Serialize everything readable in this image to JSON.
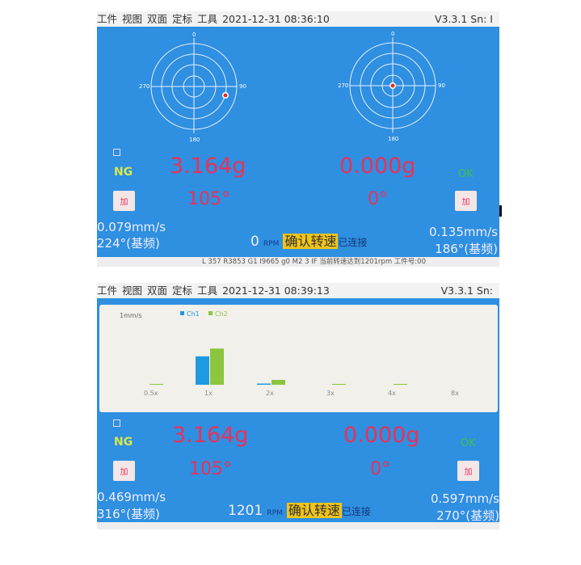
{
  "screens": [
    {
      "menu": [
        "工件",
        "视图",
        "双面",
        "定标",
        "工具"
      ],
      "datetime": "2021-12-31 08:36:10",
      "version": "V3.3.1 Sn: I",
      "left": {
        "status": "NG",
        "weight": "3.164g",
        "angle": "105°",
        "vibration": "0.079mm/s",
        "phase": "224°(基频)"
      },
      "right": {
        "status": "OK",
        "weight": "0.000g",
        "angle": "0°",
        "vibration": "0.135mm/s",
        "phase": "186°(基频)"
      },
      "rpm_value": "0",
      "rpm_unit": "RPM",
      "confirm_label": "确认转速",
      "connection": "已连接",
      "icon_label": "加",
      "polar_labels": [
        "0",
        "90",
        "180",
        "270"
      ],
      "statusbar": "L 357  R3853  G1 I9665 g0 M2 3 IF  当前转速达到1201rpm    工件号:00"
    },
    {
      "menu": [
        "工件",
        "视图",
        "双面",
        "定标",
        "工具"
      ],
      "datetime": "2021-12-31 08:39:13",
      "version": "V3.3.1 Sn:",
      "left": {
        "status": "NG",
        "weight": "3.164g",
        "angle": "105°",
        "vibration": "0.469mm/s",
        "phase": "316°(基频)"
      },
      "right": {
        "status": "OK",
        "weight": "0.000g",
        "angle": "0°",
        "vibration": "0.597mm/s",
        "phase": "270°(基频)"
      },
      "rpm_value": "1201",
      "rpm_unit": "RPM",
      "confirm_label": "确认转速",
      "connection": "已连接",
      "icon_label": "加"
    }
  ],
  "colors": {
    "screen_bg": "#2f8fe0",
    "value_red": "#e8325a",
    "ng": "#d8e84a",
    "ok": "#3ac24a",
    "confirm": "#f0c419",
    "ch1": "#1e9be0",
    "ch2": "#8cc63f"
  },
  "chart_data": {
    "type": "bar",
    "ylabel": "1mm/s",
    "categories": [
      "0.5x",
      "1x",
      "2x",
      "3x",
      "4x",
      "8x"
    ],
    "series": [
      {
        "name": "Ch1",
        "values": [
          0,
          0.469,
          0.02,
          0,
          0,
          0
        ]
      },
      {
        "name": "Ch2",
        "values": [
          0.005,
          0.597,
          0.08,
          0.005,
          0.005,
          0
        ]
      }
    ],
    "ylim": [
      0,
      1.2
    ],
    "legend": "top"
  }
}
